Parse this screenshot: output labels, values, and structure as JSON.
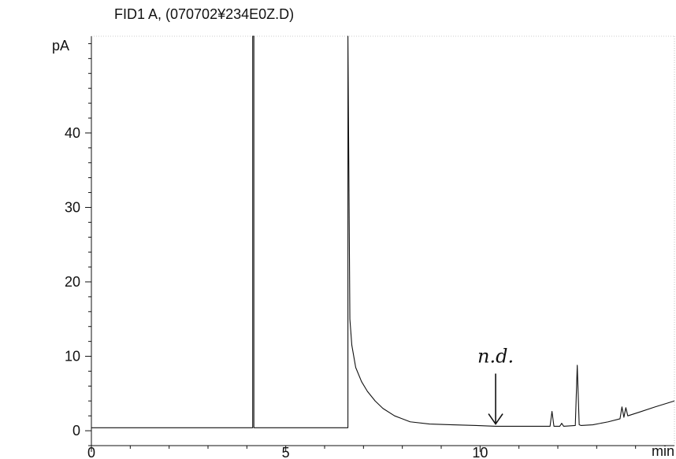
{
  "chart_data": {
    "type": "line",
    "title": "FID1 A, (070702¥234E0Z.D)",
    "xlabel": "min",
    "ylabel": "pA",
    "xlim": [
      0,
      15
    ],
    "ylim": [
      -2,
      53
    ],
    "x_ticks": [
      0,
      5,
      10
    ],
    "y_ticks": [
      0,
      10,
      20,
      30,
      40
    ],
    "grid": false,
    "legend": "none",
    "colors": {
      "trace": "#111111",
      "axis": "#111111",
      "background": "#ffffff"
    },
    "series": [
      {
        "x": [
          0.0,
          4.15,
          4.15,
          4.18,
          4.18,
          6.6,
          6.6,
          6.65,
          6.7,
          6.8,
          6.95,
          7.1,
          7.3,
          7.5,
          7.8,
          8.2,
          8.7,
          9.3,
          9.9,
          10.4,
          10.9,
          11.5,
          11.8,
          11.85,
          11.9,
          12.05,
          12.1,
          12.15,
          12.45,
          12.5,
          12.55,
          12.6,
          12.9,
          13.3,
          13.6,
          13.65,
          13.7,
          13.75,
          13.8,
          14.1,
          14.5,
          15.0
        ],
        "y": [
          0.4,
          0.4,
          53.0,
          53.0,
          0.4,
          0.4,
          53.0,
          15.0,
          11.5,
          8.5,
          6.6,
          5.3,
          4.0,
          3.0,
          2.0,
          1.2,
          0.9,
          0.8,
          0.7,
          0.6,
          0.6,
          0.6,
          0.6,
          2.6,
          0.6,
          0.6,
          1.0,
          0.6,
          0.7,
          8.8,
          0.8,
          0.7,
          0.8,
          1.2,
          1.6,
          3.2,
          1.8,
          3.1,
          2.0,
          2.5,
          3.2,
          4.0
        ]
      }
    ],
    "annotations": [
      {
        "text": "n.d.",
        "x": 10.4,
        "y": 0.8
      }
    ]
  }
}
